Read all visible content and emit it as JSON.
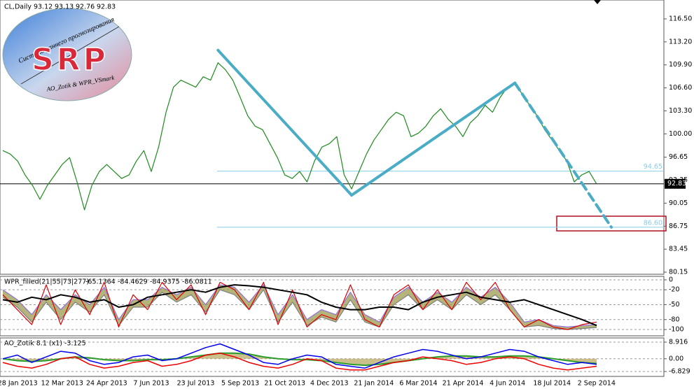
{
  "chart_data": [
    {
      "type": "line",
      "symbol": "CL,Daily",
      "ohlc": [
        93.12,
        93.13,
        92.76,
        92.83
      ],
      "logo": {
        "title": "SRP",
        "subtitle": "Система раннего прогнозирования",
        "credit": "AO_Zotik & WPR_VSmark"
      },
      "categories": [
        null,
        null,
        "28 Jan 2013",
        null,
        null,
        null,
        null,
        null,
        "12 Mar 2013",
        null,
        null,
        null,
        null,
        null,
        "24 Apr 2013",
        null,
        null,
        null,
        null,
        null,
        "7 Jun 2013",
        null,
        null,
        null,
        null,
        null,
        "23 Jul 2013",
        null,
        null,
        null,
        null,
        null,
        "5 Sep 2013",
        null,
        null,
        null,
        null,
        null,
        "21 Oct 2013",
        null,
        null,
        null,
        null,
        null,
        "4 Dec 2013",
        null,
        null,
        null,
        null,
        null,
        "21 Jan 2014",
        null,
        null,
        null,
        null,
        null,
        "6 Mar 2014",
        null,
        null,
        null,
        null,
        null,
        "21 Apr 2014",
        null,
        null,
        null,
        null,
        null,
        "4 Jun 2014",
        null,
        null,
        null,
        null,
        null,
        "18 Jul 2014",
        null,
        null,
        null,
        null,
        null,
        "2 Sep 2014",
        null,
        null
      ],
      "series": [
        {
          "color": "#1e8c1e",
          "values": [
            97.6,
            97.1,
            96.1,
            94.1,
            92.6,
            90.6,
            92.6,
            94.1,
            95.6,
            96.6,
            93.1,
            89.1,
            92.6,
            94.6,
            95.6,
            94.6,
            93.6,
            94.1,
            96.1,
            97.6,
            94.6,
            98.1,
            103.1,
            106.7,
            107.7,
            107.2,
            106.7,
            108.2,
            107.7,
            110.2,
            109.2,
            107.7,
            105.2,
            102.6,
            101.1,
            100.6,
            98.6,
            96.6,
            94.1,
            93.6,
            94.6,
            93.1,
            96.1,
            98.1,
            98.6,
            99.6,
            94.1,
            92.1,
            94.6,
            97.1,
            99.1,
            100.6,
            102.1,
            103.1,
            102.6,
            99.6,
            100.1,
            101.1,
            102.6,
            103.6,
            102.1,
            101.1,
            99.6,
            101.6,
            102.6,
            104.1,
            103.1,
            105.2,
            106.7,
            107.2,
            105.7,
            104.1,
            102.6,
            100.6,
            99.1,
            97.6,
            96.1,
            93.1,
            94.1,
            94.6,
            92.83,
            null,
            null
          ]
        },
        {
          "color": "#4bacc6",
          "connect_gaps": true,
          "values": [
            null,
            null,
            null,
            null,
            null,
            null,
            null,
            null,
            null,
            null,
            null,
            null,
            null,
            null,
            null,
            null,
            null,
            null,
            null,
            null,
            null,
            null,
            null,
            null,
            null,
            null,
            null,
            null,
            null,
            112.0,
            null,
            null,
            null,
            null,
            null,
            null,
            null,
            null,
            null,
            null,
            null,
            null,
            null,
            null,
            null,
            null,
            null,
            91.2,
            null,
            null,
            null,
            null,
            null,
            null,
            null,
            null,
            null,
            null,
            null,
            null,
            null,
            null,
            null,
            null,
            null,
            null,
            null,
            null,
            null,
            107.3,
            null,
            null,
            null,
            null,
            null,
            null,
            null,
            null,
            null,
            null,
            null,
            null,
            null
          ]
        },
        {
          "color": "#4bacc6",
          "connect_gaps": true,
          "line_style": "dashed",
          "values": [
            null,
            null,
            null,
            null,
            null,
            null,
            null,
            null,
            null,
            null,
            null,
            null,
            null,
            null,
            null,
            null,
            null,
            null,
            null,
            null,
            null,
            null,
            null,
            null,
            null,
            null,
            null,
            null,
            null,
            null,
            null,
            null,
            null,
            null,
            null,
            null,
            null,
            null,
            null,
            null,
            null,
            null,
            null,
            null,
            null,
            null,
            null,
            null,
            null,
            null,
            null,
            null,
            null,
            null,
            null,
            null,
            null,
            null,
            null,
            null,
            null,
            null,
            null,
            null,
            null,
            null,
            null,
            null,
            null,
            107.3,
            null,
            null,
            null,
            null,
            null,
            null,
            null,
            null,
            null,
            null,
            null,
            null,
            86.6
          ]
        }
      ],
      "levels": [
        {
          "value": 94.65,
          "label": "94.65",
          "color": "#87ceeb"
        },
        {
          "value": 86.6,
          "label": "86.60",
          "color": "#87ceeb"
        }
      ],
      "current": {
        "value": 92.83,
        "label": "92.83",
        "color": "#000000"
      },
      "ylim": [
        79.85,
        119.21
      ],
      "yticks": [
        {
          "value": 116.5,
          "label": "116.50"
        },
        {
          "value": 113.2,
          "label": "113.20"
        },
        {
          "value": 109.9,
          "label": "109.90"
        },
        {
          "value": 106.6,
          "label": "106.60"
        },
        {
          "value": 103.3,
          "label": "103.30"
        },
        {
          "value": 100,
          "label": "100.00"
        },
        96.65,
        93.35,
        90.05,
        86.75,
        83.45,
        80.15
      ],
      "grid": false
    },
    {
      "type": "line",
      "title": "WPR_filled(21|55|73|277)",
      "readings": [
        -65.1364,
        -84.4629,
        -84.9375,
        -86.0811
      ],
      "band_color": "#9b9b4f",
      "series": [
        {
          "color": "#9370db",
          "band_edge": true,
          "values": [
            -20,
            -40,
            -70,
            -30,
            -60,
            -30,
            -50,
            -15,
            -80,
            -40,
            -40,
            -15,
            -30,
            -15,
            -50,
            -10,
            -15,
            -45,
            -10,
            -70,
            -30,
            -80,
            -60,
            -70,
            -25,
            -70,
            -85,
            -35,
            -15,
            -45,
            -25,
            -45,
            -15,
            -35,
            -15,
            -45,
            -85,
            -80,
            -92,
            -95,
            -92,
            -90
          ]
        },
        {
          "color": "#808080",
          "band_edge": true,
          "values": [
            -35,
            -55,
            -85,
            -45,
            -80,
            -45,
            -65,
            -30,
            -92,
            -55,
            -55,
            -25,
            -45,
            -30,
            -65,
            -20,
            -30,
            -60,
            -20,
            -85,
            -45,
            -92,
            -75,
            -85,
            -40,
            -85,
            -95,
            -50,
            -30,
            -60,
            -40,
            -60,
            -30,
            -50,
            -30,
            -60,
            -95,
            -92,
            -98,
            -100,
            -98,
            -96
          ]
        },
        {
          "color": "#dd0000",
          "values": [
            -30,
            -60,
            -90,
            -10,
            -90,
            -20,
            -70,
            -5,
            -95,
            -30,
            -60,
            -5,
            -40,
            -10,
            -70,
            -5,
            -20,
            -60,
            -5,
            -90,
            -20,
            -95,
            -70,
            -80,
            -10,
            -80,
            -95,
            -30,
            -10,
            -60,
            -20,
            -60,
            -5,
            -40,
            -5,
            -60,
            -95,
            -80,
            -95,
            -100,
            -90,
            -85
          ]
        },
        {
          "color": "#000000",
          "width": 2,
          "values": [
            -40,
            -45,
            -35,
            -40,
            -30,
            -35,
            -45,
            -40,
            -55,
            -50,
            -35,
            -30,
            -25,
            -20,
            -25,
            -15,
            -10,
            -12,
            -15,
            -20,
            -25,
            -30,
            -45,
            -55,
            -60,
            -60,
            -55,
            -55,
            -60,
            -45,
            -35,
            -30,
            -25,
            -35,
            -40,
            -45,
            -40,
            -50,
            -60,
            -70,
            -80,
            -92
          ]
        }
      ],
      "ylim": [
        -112.7,
        7
      ],
      "yticks": [
        0,
        -20,
        -50,
        -80,
        -100
      ],
      "grid": true
    },
    {
      "type": "line",
      "title": "AO_Zotik 8.1 (x1)",
      "readings": [
        -3.125
      ],
      "area_color": "#b5a55a",
      "series": [
        {
          "color": "#2a9d2a",
          "width": 2,
          "area": true,
          "values": [
            0,
            -1,
            -1.5,
            -1,
            0,
            1,
            0.5,
            -0.5,
            -1,
            -1,
            -0.5,
            -0.5,
            0,
            1,
            2,
            3,
            3,
            2.5,
            1,
            0,
            -0.5,
            -0.5,
            -1,
            -2,
            -3,
            -3.5,
            -3,
            -2,
            -1,
            0,
            1,
            1.5,
            1.5,
            1,
            1,
            1.5,
            1.5,
            1,
            0,
            -1,
            -2,
            -2.5
          ]
        },
        {
          "color": "#0000ee",
          "width": 1.5,
          "values": [
            0,
            2,
            -2,
            1,
            4,
            3,
            -1,
            -3,
            -2,
            1,
            2,
            -1,
            0,
            3,
            6,
            8,
            5,
            2,
            -2,
            -3,
            0,
            2,
            1,
            -3,
            -4,
            -5,
            -2,
            1,
            3,
            5,
            4,
            2,
            0,
            1,
            3,
            5,
            4,
            1,
            -1,
            -3,
            -2,
            -3
          ]
        },
        {
          "color": "#ee0000",
          "width": 1.5,
          "values": [
            -2,
            -4,
            -5,
            -3,
            0,
            1,
            -3,
            -5,
            -4,
            -2,
            -1,
            -4,
            -3,
            -1,
            2,
            3,
            1,
            -2,
            -4,
            -5,
            -3,
            0,
            -1,
            -5,
            -6,
            -6,
            -4,
            -2,
            -1,
            1,
            0,
            -1,
            -3,
            -2,
            0,
            1,
            0,
            -3,
            -5,
            -6,
            -5,
            -4
          ]
        }
      ],
      "ylim": [
        -9.45,
        11.17
      ],
      "yticks": [
        8.916,
        {
          "value": 0,
          "label": "0.00"
        },
        -6.829
      ],
      "grid": true
    }
  ]
}
